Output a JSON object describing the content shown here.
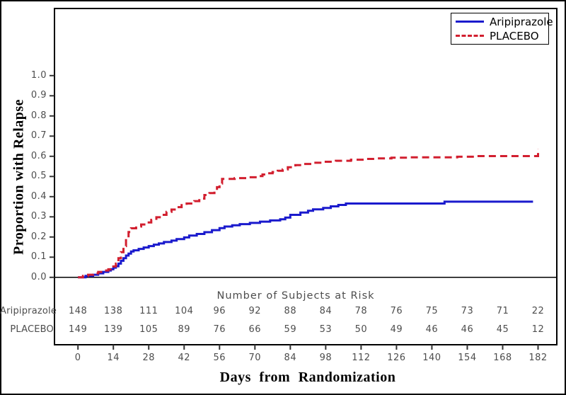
{
  "figure": {
    "y_axis_title": "Proportion with Relapse",
    "x_axis_title": "Days from Randomization"
  },
  "colors": {
    "aripiprazole_line": "#1a1acd",
    "placebo_line": "#d21f2f",
    "axis_frame": "#000000",
    "tick_text": "#4d4d4d"
  },
  "legend": {
    "items": [
      {
        "label": "Aripiprazole",
        "style": "solid",
        "color": "#1a1acd"
      },
      {
        "label": "PLACEBO",
        "style": "dashed",
        "color": "#d21f2f"
      }
    ]
  },
  "chart_data": {
    "type": "line",
    "subtype": "kaplan-meier-step",
    "title": "",
    "xlabel": "Days from Randomization",
    "ylabel": "Proportion with Relapse",
    "xlim": [
      0,
      182
    ],
    "ylim": [
      0,
      1.0
    ],
    "grid": false,
    "legend_position": "top-right",
    "x_ticks": [
      0,
      14,
      28,
      42,
      56,
      70,
      84,
      98,
      112,
      126,
      140,
      154,
      168,
      182
    ],
    "y_ticks": [
      0.0,
      0.1,
      0.2,
      0.3,
      0.4,
      0.5,
      0.6,
      0.7,
      0.8,
      0.9,
      1.0
    ],
    "y_tick_labels": [
      "0.0",
      "0.1",
      "0.2",
      "0.3",
      "0.4",
      "0.5",
      "0.6",
      "0.7",
      "0.8",
      "0.9",
      "1.0"
    ],
    "series": [
      {
        "name": "Aripiprazole",
        "color": "#1a1acd",
        "dash": "solid",
        "points": [
          [
            0,
            0
          ],
          [
            3,
            0.007
          ],
          [
            6,
            0.013
          ],
          [
            8,
            0.02
          ],
          [
            10,
            0.027
          ],
          [
            12,
            0.034
          ],
          [
            13,
            0.04
          ],
          [
            14,
            0.048
          ],
          [
            15,
            0.055
          ],
          [
            16,
            0.068
          ],
          [
            17,
            0.082
          ],
          [
            18,
            0.095
          ],
          [
            19,
            0.108
          ],
          [
            20,
            0.118
          ],
          [
            21,
            0.128
          ],
          [
            22,
            0.134
          ],
          [
            24,
            0.141
          ],
          [
            26,
            0.148
          ],
          [
            28,
            0.155
          ],
          [
            30,
            0.162
          ],
          [
            32,
            0.168
          ],
          [
            34,
            0.175
          ],
          [
            37,
            0.182
          ],
          [
            39,
            0.19
          ],
          [
            42,
            0.198
          ],
          [
            44,
            0.207
          ],
          [
            47,
            0.215
          ],
          [
            50,
            0.224
          ],
          [
            53,
            0.234
          ],
          [
            56,
            0.244
          ],
          [
            58,
            0.252
          ],
          [
            61,
            0.258
          ],
          [
            64,
            0.264
          ],
          [
            68,
            0.27
          ],
          [
            72,
            0.276
          ],
          [
            76,
            0.282
          ],
          [
            80,
            0.288
          ],
          [
            82,
            0.296
          ],
          [
            84,
            0.31
          ],
          [
            88,
            0.321
          ],
          [
            91,
            0.33
          ],
          [
            93,
            0.337
          ],
          [
            97,
            0.344
          ],
          [
            100,
            0.352
          ],
          [
            103,
            0.359
          ],
          [
            106,
            0.366
          ],
          [
            145,
            0.375
          ],
          [
            180,
            0.375
          ]
        ]
      },
      {
        "name": "PLACEBO",
        "color": "#d21f2f",
        "dash": "dashed",
        "points": [
          [
            0,
            0
          ],
          [
            2,
            0.007
          ],
          [
            4,
            0.013
          ],
          [
            6,
            0.02
          ],
          [
            8,
            0.027
          ],
          [
            10,
            0.034
          ],
          [
            12,
            0.04
          ],
          [
            13,
            0.047
          ],
          [
            14,
            0.054
          ],
          [
            15,
            0.068
          ],
          [
            16,
            0.095
          ],
          [
            17,
            0.125
          ],
          [
            18,
            0.155
          ],
          [
            19,
            0.19
          ],
          [
            20,
            0.225
          ],
          [
            21,
            0.243
          ],
          [
            23,
            0.252
          ],
          [
            25,
            0.262
          ],
          [
            27,
            0.272
          ],
          [
            29,
            0.285
          ],
          [
            31,
            0.298
          ],
          [
            33,
            0.31
          ],
          [
            35,
            0.325
          ],
          [
            37,
            0.336
          ],
          [
            39,
            0.348
          ],
          [
            41,
            0.358
          ],
          [
            43,
            0.366
          ],
          [
            46,
            0.378
          ],
          [
            48,
            0.39
          ],
          [
            50,
            0.408
          ],
          [
            52,
            0.418
          ],
          [
            54,
            0.432
          ],
          [
            55,
            0.447
          ],
          [
            56,
            0.465
          ],
          [
            57,
            0.488
          ],
          [
            62,
            0.492
          ],
          [
            67,
            0.496
          ],
          [
            71,
            0.502
          ],
          [
            73,
            0.51
          ],
          [
            75,
            0.516
          ],
          [
            77,
            0.522
          ],
          [
            79,
            0.528
          ],
          [
            81,
            0.535
          ],
          [
            83,
            0.546
          ],
          [
            86,
            0.556
          ],
          [
            89,
            0.562
          ],
          [
            93,
            0.568
          ],
          [
            97,
            0.573
          ],
          [
            102,
            0.578
          ],
          [
            108,
            0.583
          ],
          [
            113,
            0.587
          ],
          [
            118,
            0.59
          ],
          [
            124,
            0.593
          ],
          [
            131,
            0.595
          ],
          [
            150,
            0.598
          ],
          [
            158,
            0.601
          ],
          [
            182,
            0.638
          ]
        ]
      }
    ]
  },
  "risk_table": {
    "title": "Number of Subjects at Risk",
    "timepoints": [
      0,
      14,
      28,
      42,
      56,
      70,
      84,
      98,
      112,
      126,
      140,
      154,
      168,
      182
    ],
    "rows": [
      {
        "label": "Aripiprazole",
        "values": [
          148,
          138,
          111,
          104,
          96,
          92,
          88,
          84,
          78,
          76,
          75,
          73,
          71,
          22
        ]
      },
      {
        "label": "PLACEBO",
        "values": [
          149,
          139,
          105,
          89,
          76,
          66,
          59,
          53,
          50,
          49,
          46,
          46,
          45,
          12
        ]
      }
    ]
  }
}
